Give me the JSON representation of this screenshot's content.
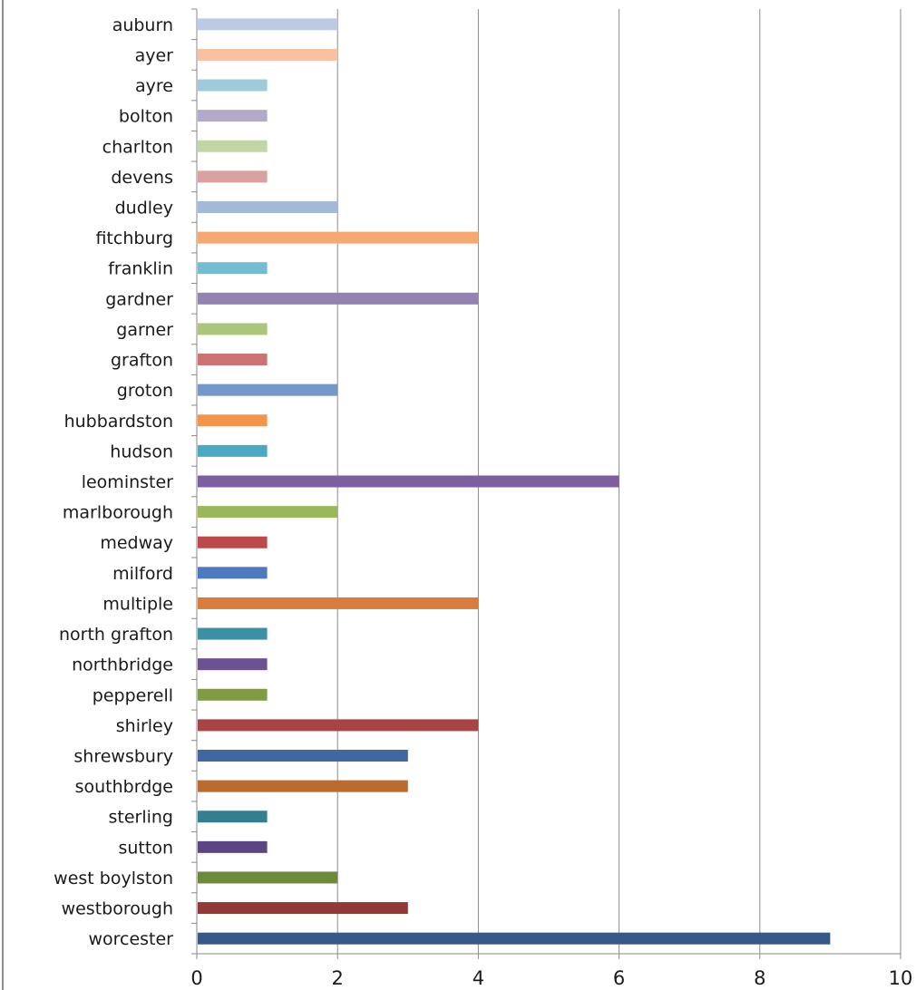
{
  "chart_data": {
    "type": "bar",
    "orientation": "horizontal",
    "title": "",
    "xlabel": "",
    "ylabel": "",
    "xlim": [
      0,
      10
    ],
    "x_ticks": [
      "0",
      "2",
      "4",
      "6",
      "8",
      "10"
    ],
    "grid": "vertical",
    "legend": "none",
    "categories": [
      "auburn",
      "ayer",
      "ayre",
      "bolton",
      "charlton",
      "devens",
      "dudley",
      "fitchburg",
      "franklin",
      "gardner",
      "garner",
      "grafton",
      "groton",
      "hubbardston",
      "hudson",
      "leominster",
      "marlborough",
      "medway",
      "milford",
      "multiple",
      "north grafton",
      "northbridge",
      "pepperell",
      "shirley",
      "shrewsbury",
      "southbrdge",
      "sterling",
      "sutton",
      "west boylston",
      "westborough",
      "worcester"
    ],
    "values": [
      2,
      2,
      1,
      1,
      1,
      1,
      2,
      4,
      1,
      4,
      1,
      1,
      2,
      1,
      1,
      6,
      2,
      1,
      1,
      4,
      1,
      1,
      1,
      4,
      3,
      3,
      1,
      1,
      2,
      3,
      9
    ],
    "colors": [
      "#bccbe4",
      "#fac0a2",
      "#9fcbd9",
      "#b3a9c9",
      "#c3d5a2",
      "#d9a0a0",
      "#a4b8da",
      "#f6a871",
      "#73bdd2",
      "#9283b0",
      "#a9c67a",
      "#cc7272",
      "#7498c9",
      "#f39448",
      "#4aaac3",
      "#7d5ea0",
      "#9ab75a",
      "#bd4948",
      "#4b7bbe",
      "#d77e3c",
      "#3a91a6",
      "#6a5290",
      "#7f9c45",
      "#a84443",
      "#3f68a1",
      "#bb6c2d",
      "#347f8f",
      "#5b4583",
      "#6b8a3a",
      "#923937",
      "#36598a"
    ]
  }
}
